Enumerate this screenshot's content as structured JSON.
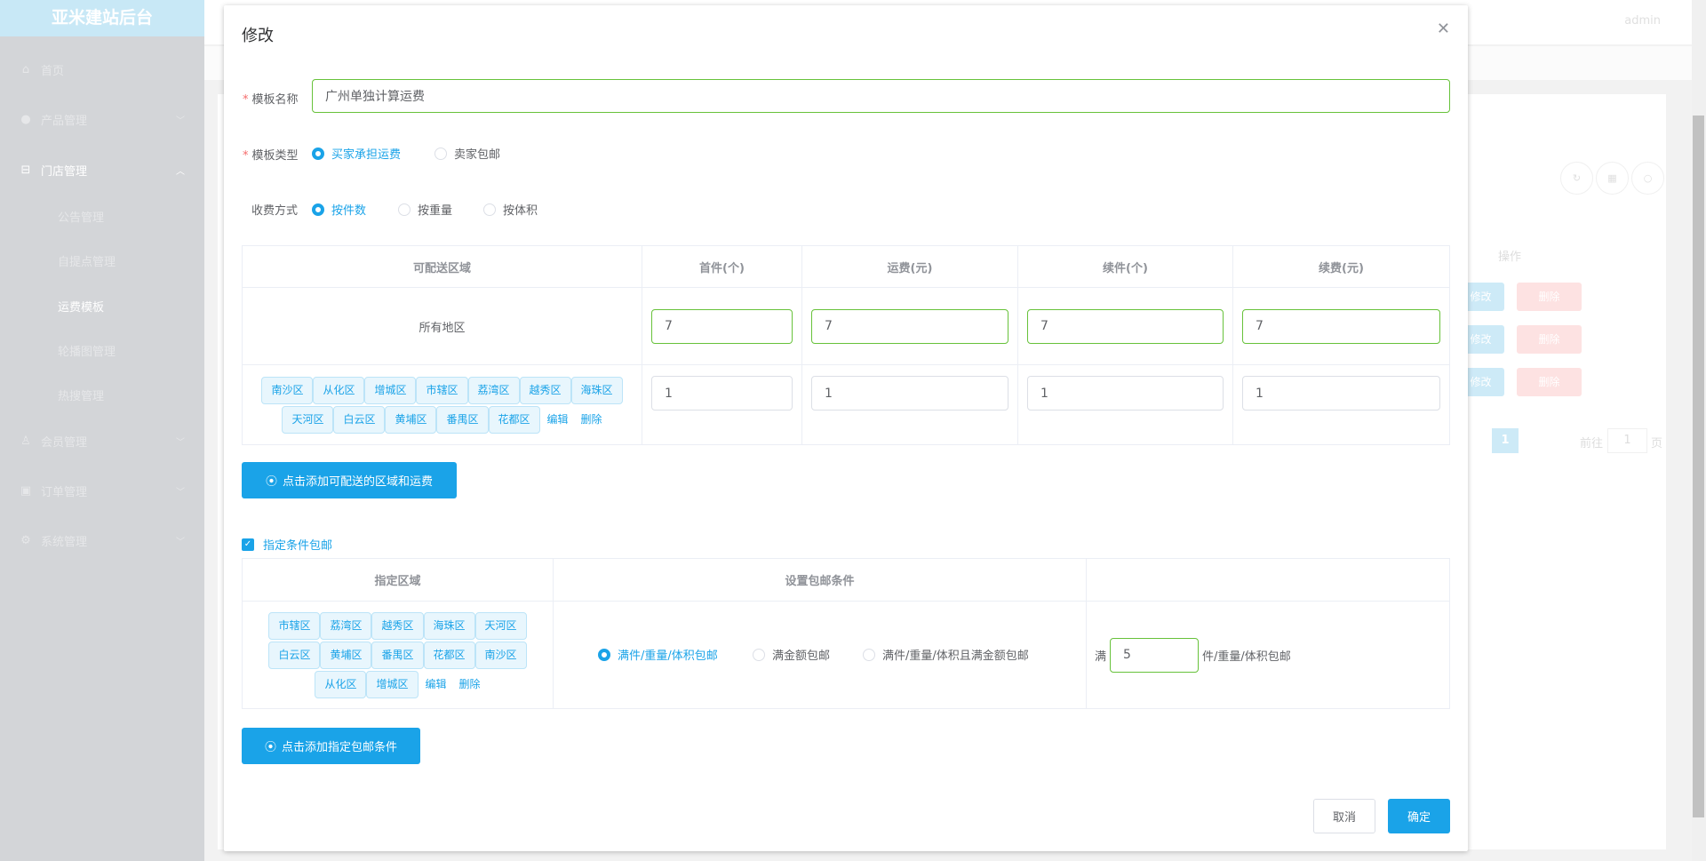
{
  "app": {
    "title": "亚米建站后台",
    "user": "admin"
  },
  "sidebar": {
    "items": [
      {
        "label": "首页",
        "icon": "home-icon"
      },
      {
        "label": "产品管理",
        "icon": "user-icon"
      },
      {
        "label": "门店管理",
        "icon": "shop-icon"
      },
      {
        "label": "公告管理"
      },
      {
        "label": "自提点管理"
      },
      {
        "label": "运费模板"
      },
      {
        "label": "轮播图管理"
      },
      {
        "label": "热搜管理"
      },
      {
        "label": "会员管理",
        "icon": "award-icon"
      },
      {
        "label": "订单管理",
        "icon": "order-icon"
      },
      {
        "label": "系统管理",
        "icon": "gear-icon"
      }
    ]
  },
  "background": {
    "op_header": "操作",
    "edit": "修改",
    "delete": "删除",
    "page": "1",
    "goto": "前往",
    "goto_value": "1",
    "page_unit": "页"
  },
  "modal": {
    "title": "修改",
    "name_label": "模板名称",
    "name_value": "广州单独计算运费",
    "type_label": "模板类型",
    "type_options": [
      "买家承担运费",
      "卖家包邮"
    ],
    "type_selected": "买家承担运费",
    "charge_label": "收费方式",
    "charge_options": [
      "按件数",
      "按重量",
      "按体积"
    ],
    "charge_selected": "按件数",
    "table1": {
      "headers": [
        "可配送区域",
        "首件(个)",
        "运费(元)",
        "续件(个)",
        "续费(元)"
      ],
      "rows": [
        {
          "region": "所有地区",
          "values": [
            "7",
            "7",
            "7",
            "7"
          ]
        },
        {
          "areas": [
            "南沙区",
            "从化区",
            "增城区",
            "市辖区",
            "荔湾区",
            "越秀区",
            "海珠区",
            "天河区",
            "白云区",
            "黄埔区",
            "番禺区",
            "花都区"
          ],
          "values": [
            "1",
            "1",
            "1",
            "1"
          ]
        }
      ]
    },
    "edit": "编辑",
    "delete": "删除",
    "add_region_button": "点击添加可配送的区域和运费",
    "free_checkbox": "指定条件包邮",
    "free_checked": true,
    "table2": {
      "headers": [
        "指定区域",
        "设置包邮条件",
        ""
      ],
      "row": {
        "areas": [
          "市辖区",
          "荔湾区",
          "越秀区",
          "海珠区",
          "天河区",
          "白云区",
          "黄埔区",
          "番禺区",
          "花都区",
          "南沙区",
          "从化区",
          "增城区"
        ],
        "conditions": [
          "满件/重量/体积包邮",
          "满金额包邮",
          "满件/重量/体积且满金额包邮"
        ],
        "condition_selected": "满件/重量/体积包邮",
        "prefix": "满",
        "value": "5",
        "suffix": "件/重量/体积包邮"
      }
    },
    "add_free_button": "点击添加指定包邮条件",
    "cancel": "取消",
    "confirm": "确定"
  },
  "colors": {
    "primary": "#1aa3e8",
    "valid": "#67c23a"
  }
}
